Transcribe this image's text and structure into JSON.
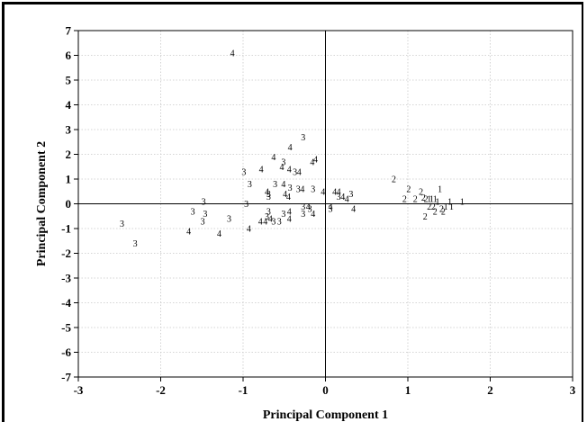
{
  "chart_data": {
    "type": "scatter",
    "xlabel": "Principal Component 1",
    "ylabel": "Principal Component 2",
    "xlim": [
      -3,
      3
    ],
    "ylim": [
      -7,
      7
    ],
    "xticks": [
      "-3",
      "-2",
      "-1",
      "0",
      "1",
      "2",
      "3"
    ],
    "yticks": [
      "-7",
      "-6",
      "-5",
      "-4",
      "-3",
      "-2",
      "-1",
      "0",
      "1",
      "2",
      "3",
      "4",
      "5",
      "6",
      "7"
    ],
    "grid": true,
    "reference_lines": {
      "x": 0,
      "y": 0
    },
    "marker_style": "text labels (group number)",
    "points": [
      {
        "x": -1.13,
        "y": 6.1,
        "label": "4"
      },
      {
        "x": -0.27,
        "y": 2.7,
        "label": "3"
      },
      {
        "x": -0.43,
        "y": 2.3,
        "label": "4"
      },
      {
        "x": -0.63,
        "y": 1.9,
        "label": "4"
      },
      {
        "x": -0.51,
        "y": 1.7,
        "label": "3"
      },
      {
        "x": -0.53,
        "y": 1.5,
        "label": "4"
      },
      {
        "x": -0.44,
        "y": 1.4,
        "label": "4"
      },
      {
        "x": -0.37,
        "y": 1.3,
        "label": "3"
      },
      {
        "x": -0.32,
        "y": 1.3,
        "label": "4"
      },
      {
        "x": -0.16,
        "y": 1.7,
        "label": "4"
      },
      {
        "x": -0.12,
        "y": 1.8,
        "label": "4"
      },
      {
        "x": -0.78,
        "y": 1.4,
        "label": "4"
      },
      {
        "x": -0.99,
        "y": 1.3,
        "label": "3"
      },
      {
        "x": -0.92,
        "y": 0.8,
        "label": "3"
      },
      {
        "x": -0.61,
        "y": 0.8,
        "label": "3"
      },
      {
        "x": -0.51,
        "y": 0.8,
        "label": "4"
      },
      {
        "x": -0.43,
        "y": 0.65,
        "label": "3"
      },
      {
        "x": -0.33,
        "y": 0.6,
        "label": "3"
      },
      {
        "x": -0.28,
        "y": 0.6,
        "label": "4"
      },
      {
        "x": -0.15,
        "y": 0.6,
        "label": "3"
      },
      {
        "x": -0.71,
        "y": 0.5,
        "label": "4"
      },
      {
        "x": -0.69,
        "y": 0.4,
        "label": "3"
      },
      {
        "x": -0.69,
        "y": 0.3,
        "label": "3"
      },
      {
        "x": -0.49,
        "y": 0.4,
        "label": "4"
      },
      {
        "x": -0.45,
        "y": 0.3,
        "label": "4"
      },
      {
        "x": -0.03,
        "y": 0.5,
        "label": "4"
      },
      {
        "x": -0.96,
        "y": 0.0,
        "label": "3"
      },
      {
        "x": -0.27,
        "y": -0.1,
        "label": "3"
      },
      {
        "x": -0.21,
        "y": -0.1,
        "label": "4"
      },
      {
        "x": -0.19,
        "y": -0.2,
        "label": "3"
      },
      {
        "x": -0.27,
        "y": -0.4,
        "label": "3"
      },
      {
        "x": -0.15,
        "y": -0.4,
        "label": "4"
      },
      {
        "x": -0.44,
        "y": -0.3,
        "label": "4"
      },
      {
        "x": -0.51,
        "y": -0.4,
        "label": "3"
      },
      {
        "x": -0.69,
        "y": -0.3,
        "label": "3"
      },
      {
        "x": -0.71,
        "y": -0.5,
        "label": "3"
      },
      {
        "x": -0.67,
        "y": -0.6,
        "label": "4"
      },
      {
        "x": -0.73,
        "y": -0.7,
        "label": "4"
      },
      {
        "x": -0.63,
        "y": -0.7,
        "label": "3"
      },
      {
        "x": -0.79,
        "y": -0.7,
        "label": "4"
      },
      {
        "x": -0.56,
        "y": -0.7,
        "label": "3"
      },
      {
        "x": -0.44,
        "y": -0.6,
        "label": "4"
      },
      {
        "x": -0.93,
        "y": -1.0,
        "label": "4"
      },
      {
        "x": -1.17,
        "y": -0.6,
        "label": "3"
      },
      {
        "x": -1.29,
        "y": -1.2,
        "label": "4"
      },
      {
        "x": -1.48,
        "y": 0.1,
        "label": "3"
      },
      {
        "x": -1.61,
        "y": -0.3,
        "label": "3"
      },
      {
        "x": -1.46,
        "y": -0.4,
        "label": "3"
      },
      {
        "x": -1.49,
        "y": -0.7,
        "label": "3"
      },
      {
        "x": -1.66,
        "y": -1.1,
        "label": "4"
      },
      {
        "x": -2.47,
        "y": -0.8,
        "label": "3"
      },
      {
        "x": -2.31,
        "y": -1.6,
        "label": "3"
      },
      {
        "x": 0.06,
        "y": -0.1,
        "label": "4"
      },
      {
        "x": 0.06,
        "y": -0.2,
        "label": "3"
      },
      {
        "x": 0.11,
        "y": 0.5,
        "label": "4"
      },
      {
        "x": 0.16,
        "y": 0.5,
        "label": "4"
      },
      {
        "x": 0.16,
        "y": 0.3,
        "label": "3"
      },
      {
        "x": 0.21,
        "y": 0.3,
        "label": "4"
      },
      {
        "x": 0.26,
        "y": 0.2,
        "label": "4"
      },
      {
        "x": 0.31,
        "y": 0.4,
        "label": "3"
      },
      {
        "x": 0.34,
        "y": -0.2,
        "label": "4"
      },
      {
        "x": 0.83,
        "y": 1.0,
        "label": "2"
      },
      {
        "x": 1.01,
        "y": 0.6,
        "label": "2"
      },
      {
        "x": 0.96,
        "y": 0.2,
        "label": "2"
      },
      {
        "x": 1.09,
        "y": 0.2,
        "label": "2"
      },
      {
        "x": 1.16,
        "y": 0.5,
        "label": "2"
      },
      {
        "x": 1.19,
        "y": 0.25,
        "label": "2"
      },
      {
        "x": 1.22,
        "y": 0.2,
        "label": "2"
      },
      {
        "x": 1.26,
        "y": 0.2,
        "label": "1"
      },
      {
        "x": 1.29,
        "y": 0.2,
        "label": "1"
      },
      {
        "x": 1.33,
        "y": 0.2,
        "label": "1"
      },
      {
        "x": 1.36,
        "y": 0.1,
        "label": "1"
      },
      {
        "x": 1.39,
        "y": 0.6,
        "label": "1"
      },
      {
        "x": 1.26,
        "y": -0.1,
        "label": "2"
      },
      {
        "x": 1.31,
        "y": -0.1,
        "label": "2"
      },
      {
        "x": 1.33,
        "y": -0.3,
        "label": "2"
      },
      {
        "x": 1.41,
        "y": -0.2,
        "label": "2"
      },
      {
        "x": 1.43,
        "y": -0.3,
        "label": "2"
      },
      {
        "x": 1.46,
        "y": -0.1,
        "label": "1"
      },
      {
        "x": 1.51,
        "y": 0.1,
        "label": "1"
      },
      {
        "x": 1.53,
        "y": -0.1,
        "label": "1"
      },
      {
        "x": 1.66,
        "y": 0.1,
        "label": "1"
      },
      {
        "x": 1.21,
        "y": -0.5,
        "label": "2"
      }
    ]
  }
}
